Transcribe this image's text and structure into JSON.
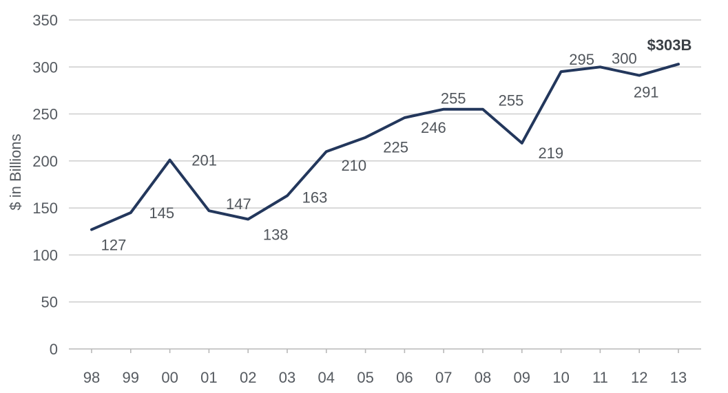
{
  "chart_data": {
    "type": "line",
    "title": "",
    "xlabel": "",
    "ylabel": "$ in Billions",
    "categories": [
      "98",
      "99",
      "00",
      "01",
      "02",
      "03",
      "04",
      "05",
      "06",
      "07",
      "08",
      "09",
      "10",
      "11",
      "12",
      "13"
    ],
    "series": [
      {
        "values": [
          127,
          145,
          201,
          147,
          138,
          163,
          210,
          225,
          246,
          255,
          255,
          219,
          295,
          300,
          291,
          303
        ]
      }
    ],
    "data_labels": [
      "127",
      "145",
      "201",
      "147",
      "138",
      "163",
      "210",
      "225",
      "246",
      "255",
      "255",
      "219",
      "295",
      "300",
      "291",
      "$303B"
    ],
    "ylim": [
      0,
      350
    ],
    "yticks": [
      0,
      50,
      100,
      150,
      200,
      250,
      300,
      350
    ],
    "grid": true,
    "legend": "none",
    "colors": {
      "line": "#23375c",
      "grid": "#c9c9c9",
      "text": "#555a60"
    }
  }
}
